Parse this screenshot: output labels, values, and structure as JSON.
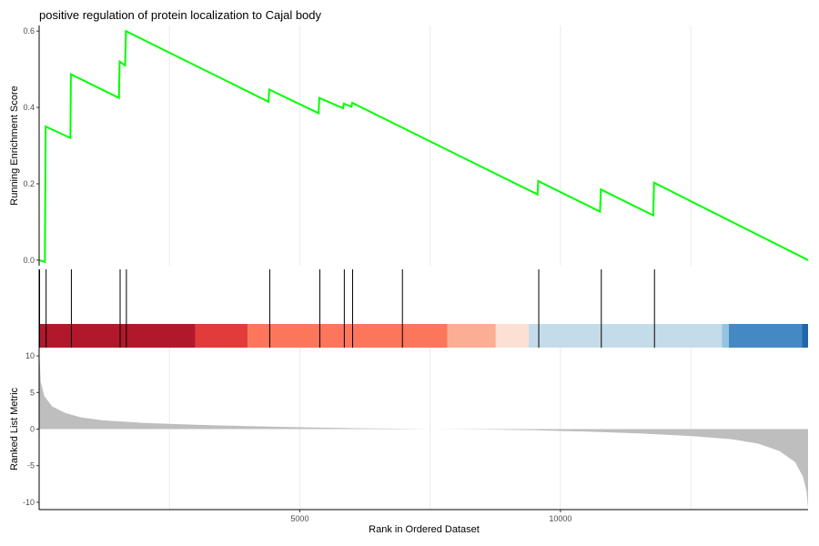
{
  "chart_data": {
    "type": "line",
    "title": "positive regulation of protein localization to Cajal body",
    "xlabel": "Rank in Ordered Dataset",
    "x_ticks": [
      5000,
      10000
    ],
    "xlim": [
      0,
      14750
    ],
    "grid": "vertical",
    "panels": [
      {
        "name": "running-score",
        "ylabel": "Running Enrichment Score",
        "ylim": [
          -0.01,
          0.61
        ],
        "y_ticks": [
          0.0,
          0.2,
          0.4,
          0.6
        ],
        "y_tick_labels": [
          "0.0",
          "0.2",
          "0.4",
          "0.6"
        ],
        "line_color": "#00ff00",
        "points": [
          [
            0,
            0
          ],
          [
            110,
            -0.005
          ],
          [
            125,
            0.35
          ],
          [
            600,
            0.32
          ],
          [
            610,
            0.487
          ],
          [
            1530,
            0.425
          ],
          [
            1545,
            0.52
          ],
          [
            1650,
            0.51
          ],
          [
            1665,
            0.6
          ],
          [
            4400,
            0.415
          ],
          [
            4415,
            0.447
          ],
          [
            5360,
            0.385
          ],
          [
            5375,
            0.425
          ],
          [
            5830,
            0.398
          ],
          [
            5845,
            0.41
          ],
          [
            5990,
            0.402
          ],
          [
            6005,
            0.412
          ],
          [
            9560,
            0.172
          ],
          [
            9575,
            0.207
          ],
          [
            10760,
            0.127
          ],
          [
            10775,
            0.185
          ],
          [
            11780,
            0.117
          ],
          [
            11795,
            0.203
          ],
          [
            14750,
            0.0
          ]
        ]
      },
      {
        "name": "hit-ticks",
        "hits": [
          0,
          125,
          610,
          1545,
          1665,
          4415,
          5375,
          5845,
          6005,
          6960,
          9575,
          10775,
          11795
        ]
      },
      {
        "name": "ranked-list-metric",
        "ylabel": "Ranked List Metric",
        "ylim": [
          -11,
          11
        ],
        "y_ticks": [
          -10,
          -5,
          0,
          5,
          10
        ],
        "y_tick_labels": [
          "-10",
          "-5",
          "0",
          "5",
          "10"
        ],
        "fill_color": "#bebebe",
        "curve": [
          [
            0,
            11
          ],
          [
            30,
            6.5
          ],
          [
            100,
            4.5
          ],
          [
            250,
            3.1
          ],
          [
            500,
            2.2
          ],
          [
            800,
            1.6
          ],
          [
            1200,
            1.2
          ],
          [
            2000,
            0.85
          ],
          [
            3000,
            0.6
          ],
          [
            4000,
            0.4
          ],
          [
            5000,
            0.25
          ],
          [
            6000,
            0.12
          ],
          [
            7000,
            0.05
          ],
          [
            7500,
            0.0
          ],
          [
            8500,
            -0.05
          ],
          [
            9500,
            -0.15
          ],
          [
            10500,
            -0.35
          ],
          [
            11500,
            -0.6
          ],
          [
            12500,
            -0.95
          ],
          [
            13300,
            -1.4
          ],
          [
            13800,
            -2.0
          ],
          [
            14200,
            -3.0
          ],
          [
            14500,
            -4.5
          ],
          [
            14650,
            -6.5
          ],
          [
            14720,
            -8.5
          ],
          [
            14750,
            -10.8
          ]
        ]
      }
    ],
    "color_bands": [
      {
        "start": 0,
        "end": 3000,
        "color": "#b2182b"
      },
      {
        "start": 3000,
        "end": 4000,
        "color": "#e23b3b"
      },
      {
        "start": 4000,
        "end": 7830,
        "color": "#fb765a"
      },
      {
        "start": 7830,
        "end": 8760,
        "color": "#fcae94"
      },
      {
        "start": 8760,
        "end": 9390,
        "color": "#fde0d4"
      },
      {
        "start": 9390,
        "end": 13100,
        "color": "#c4dcea"
      },
      {
        "start": 13100,
        "end": 13230,
        "color": "#92c5de"
      },
      {
        "start": 13230,
        "end": 14630,
        "color": "#4589c4"
      },
      {
        "start": 14630,
        "end": 14750,
        "color": "#2166ac"
      }
    ]
  }
}
